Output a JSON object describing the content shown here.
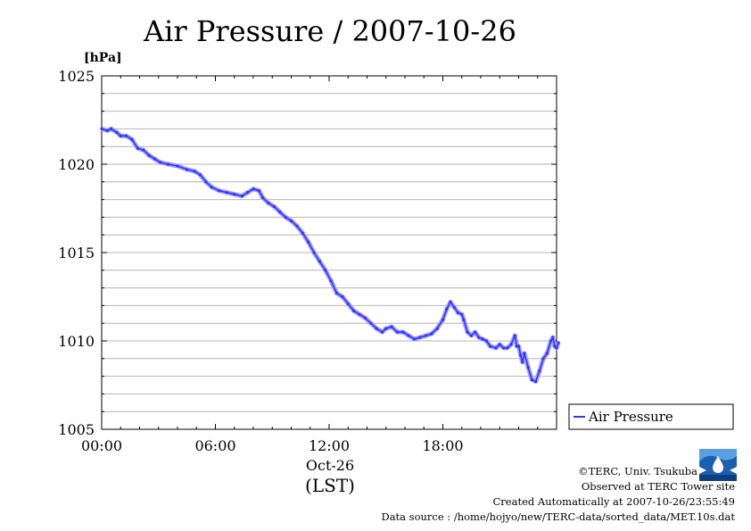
{
  "chart_data": {
    "type": "line",
    "title": "Air Pressure / 2007-10-26",
    "ylabel_unit": "[hPa]",
    "xlabel_date": "Oct-26",
    "xlabel_unit": "(LST)",
    "ylim": [
      1005,
      1025
    ],
    "xlim_hours": [
      0,
      24
    ],
    "yticks": [
      "1005",
      "1010",
      "1015",
      "1020",
      "1025"
    ],
    "xticks": [
      "00:00",
      "06:00",
      "12:00",
      "18:00"
    ],
    "grid": true,
    "legend_position": "right",
    "series": [
      {
        "name": "Air Pressure",
        "color": "#3333ff",
        "points": [
          [
            0.0,
            1022.0
          ],
          [
            0.3,
            1021.9
          ],
          [
            0.5,
            1022.0
          ],
          [
            0.8,
            1021.8
          ],
          [
            1.0,
            1021.6
          ],
          [
            1.3,
            1021.6
          ],
          [
            1.6,
            1021.4
          ],
          [
            1.9,
            1020.9
          ],
          [
            2.2,
            1020.8
          ],
          [
            2.5,
            1020.5
          ],
          [
            2.8,
            1020.3
          ],
          [
            3.1,
            1020.1
          ],
          [
            3.5,
            1020.0
          ],
          [
            4.0,
            1019.9
          ],
          [
            4.5,
            1019.7
          ],
          [
            4.9,
            1019.6
          ],
          [
            5.2,
            1019.4
          ],
          [
            5.5,
            1019.0
          ],
          [
            5.8,
            1018.7
          ],
          [
            6.2,
            1018.5
          ],
          [
            6.6,
            1018.4
          ],
          [
            7.0,
            1018.3
          ],
          [
            7.4,
            1018.2
          ],
          [
            7.7,
            1018.4
          ],
          [
            8.0,
            1018.6
          ],
          [
            8.3,
            1018.5
          ],
          [
            8.5,
            1018.1
          ],
          [
            8.8,
            1017.8
          ],
          [
            9.1,
            1017.6
          ],
          [
            9.4,
            1017.3
          ],
          [
            9.7,
            1017.0
          ],
          [
            10.0,
            1016.8
          ],
          [
            10.3,
            1016.5
          ],
          [
            10.6,
            1016.1
          ],
          [
            10.9,
            1015.6
          ],
          [
            11.2,
            1015.0
          ],
          [
            11.5,
            1014.5
          ],
          [
            11.8,
            1014.0
          ],
          [
            12.1,
            1013.4
          ],
          [
            12.4,
            1012.7
          ],
          [
            12.7,
            1012.5
          ],
          [
            13.0,
            1012.1
          ],
          [
            13.3,
            1011.7
          ],
          [
            13.6,
            1011.5
          ],
          [
            13.9,
            1011.3
          ],
          [
            14.2,
            1011.0
          ],
          [
            14.5,
            1010.7
          ],
          [
            14.8,
            1010.5
          ],
          [
            15.0,
            1010.7
          ],
          [
            15.3,
            1010.8
          ],
          [
            15.6,
            1010.5
          ],
          [
            15.9,
            1010.5
          ],
          [
            16.2,
            1010.3
          ],
          [
            16.5,
            1010.1
          ],
          [
            16.8,
            1010.2
          ],
          [
            17.1,
            1010.3
          ],
          [
            17.4,
            1010.4
          ],
          [
            17.7,
            1010.7
          ],
          [
            18.0,
            1011.2
          ],
          [
            18.2,
            1011.8
          ],
          [
            18.4,
            1012.2
          ],
          [
            18.6,
            1011.9
          ],
          [
            18.8,
            1011.6
          ],
          [
            19.0,
            1011.5
          ],
          [
            19.1,
            1011.2
          ],
          [
            19.3,
            1010.5
          ],
          [
            19.5,
            1010.3
          ],
          [
            19.7,
            1010.5
          ],
          [
            19.9,
            1010.2
          ],
          [
            20.1,
            1010.1
          ],
          [
            20.3,
            1010.0
          ],
          [
            20.5,
            1009.7
          ],
          [
            20.8,
            1009.6
          ],
          [
            21.0,
            1009.8
          ],
          [
            21.2,
            1009.6
          ],
          [
            21.4,
            1009.6
          ],
          [
            21.6,
            1009.8
          ],
          [
            21.8,
            1010.3
          ],
          [
            21.9,
            1009.7
          ],
          [
            22.0,
            1009.7
          ],
          [
            22.1,
            1009.2
          ],
          [
            22.2,
            1008.8
          ],
          [
            22.3,
            1009.3
          ],
          [
            22.5,
            1008.5
          ],
          [
            22.7,
            1007.8
          ],
          [
            22.9,
            1007.7
          ],
          [
            23.1,
            1008.3
          ],
          [
            23.3,
            1009.0
          ],
          [
            23.5,
            1009.3
          ],
          [
            23.7,
            1010.0
          ],
          [
            23.8,
            1010.2
          ],
          [
            23.9,
            1009.7
          ],
          [
            24.0,
            1009.6
          ],
          [
            24.2,
            1009.9
          ]
        ]
      }
    ]
  },
  "credits": {
    "copyright": "©TERC, Univ. Tsukuba",
    "site": "Observed at TERC Tower site",
    "created": "Created Automatically at 2007-10-26/23:55:49",
    "source": "Data source : /home/hojyo/new/TERC-data/sorted_data/MET.10s.dat",
    "logo_text": "TERC"
  }
}
